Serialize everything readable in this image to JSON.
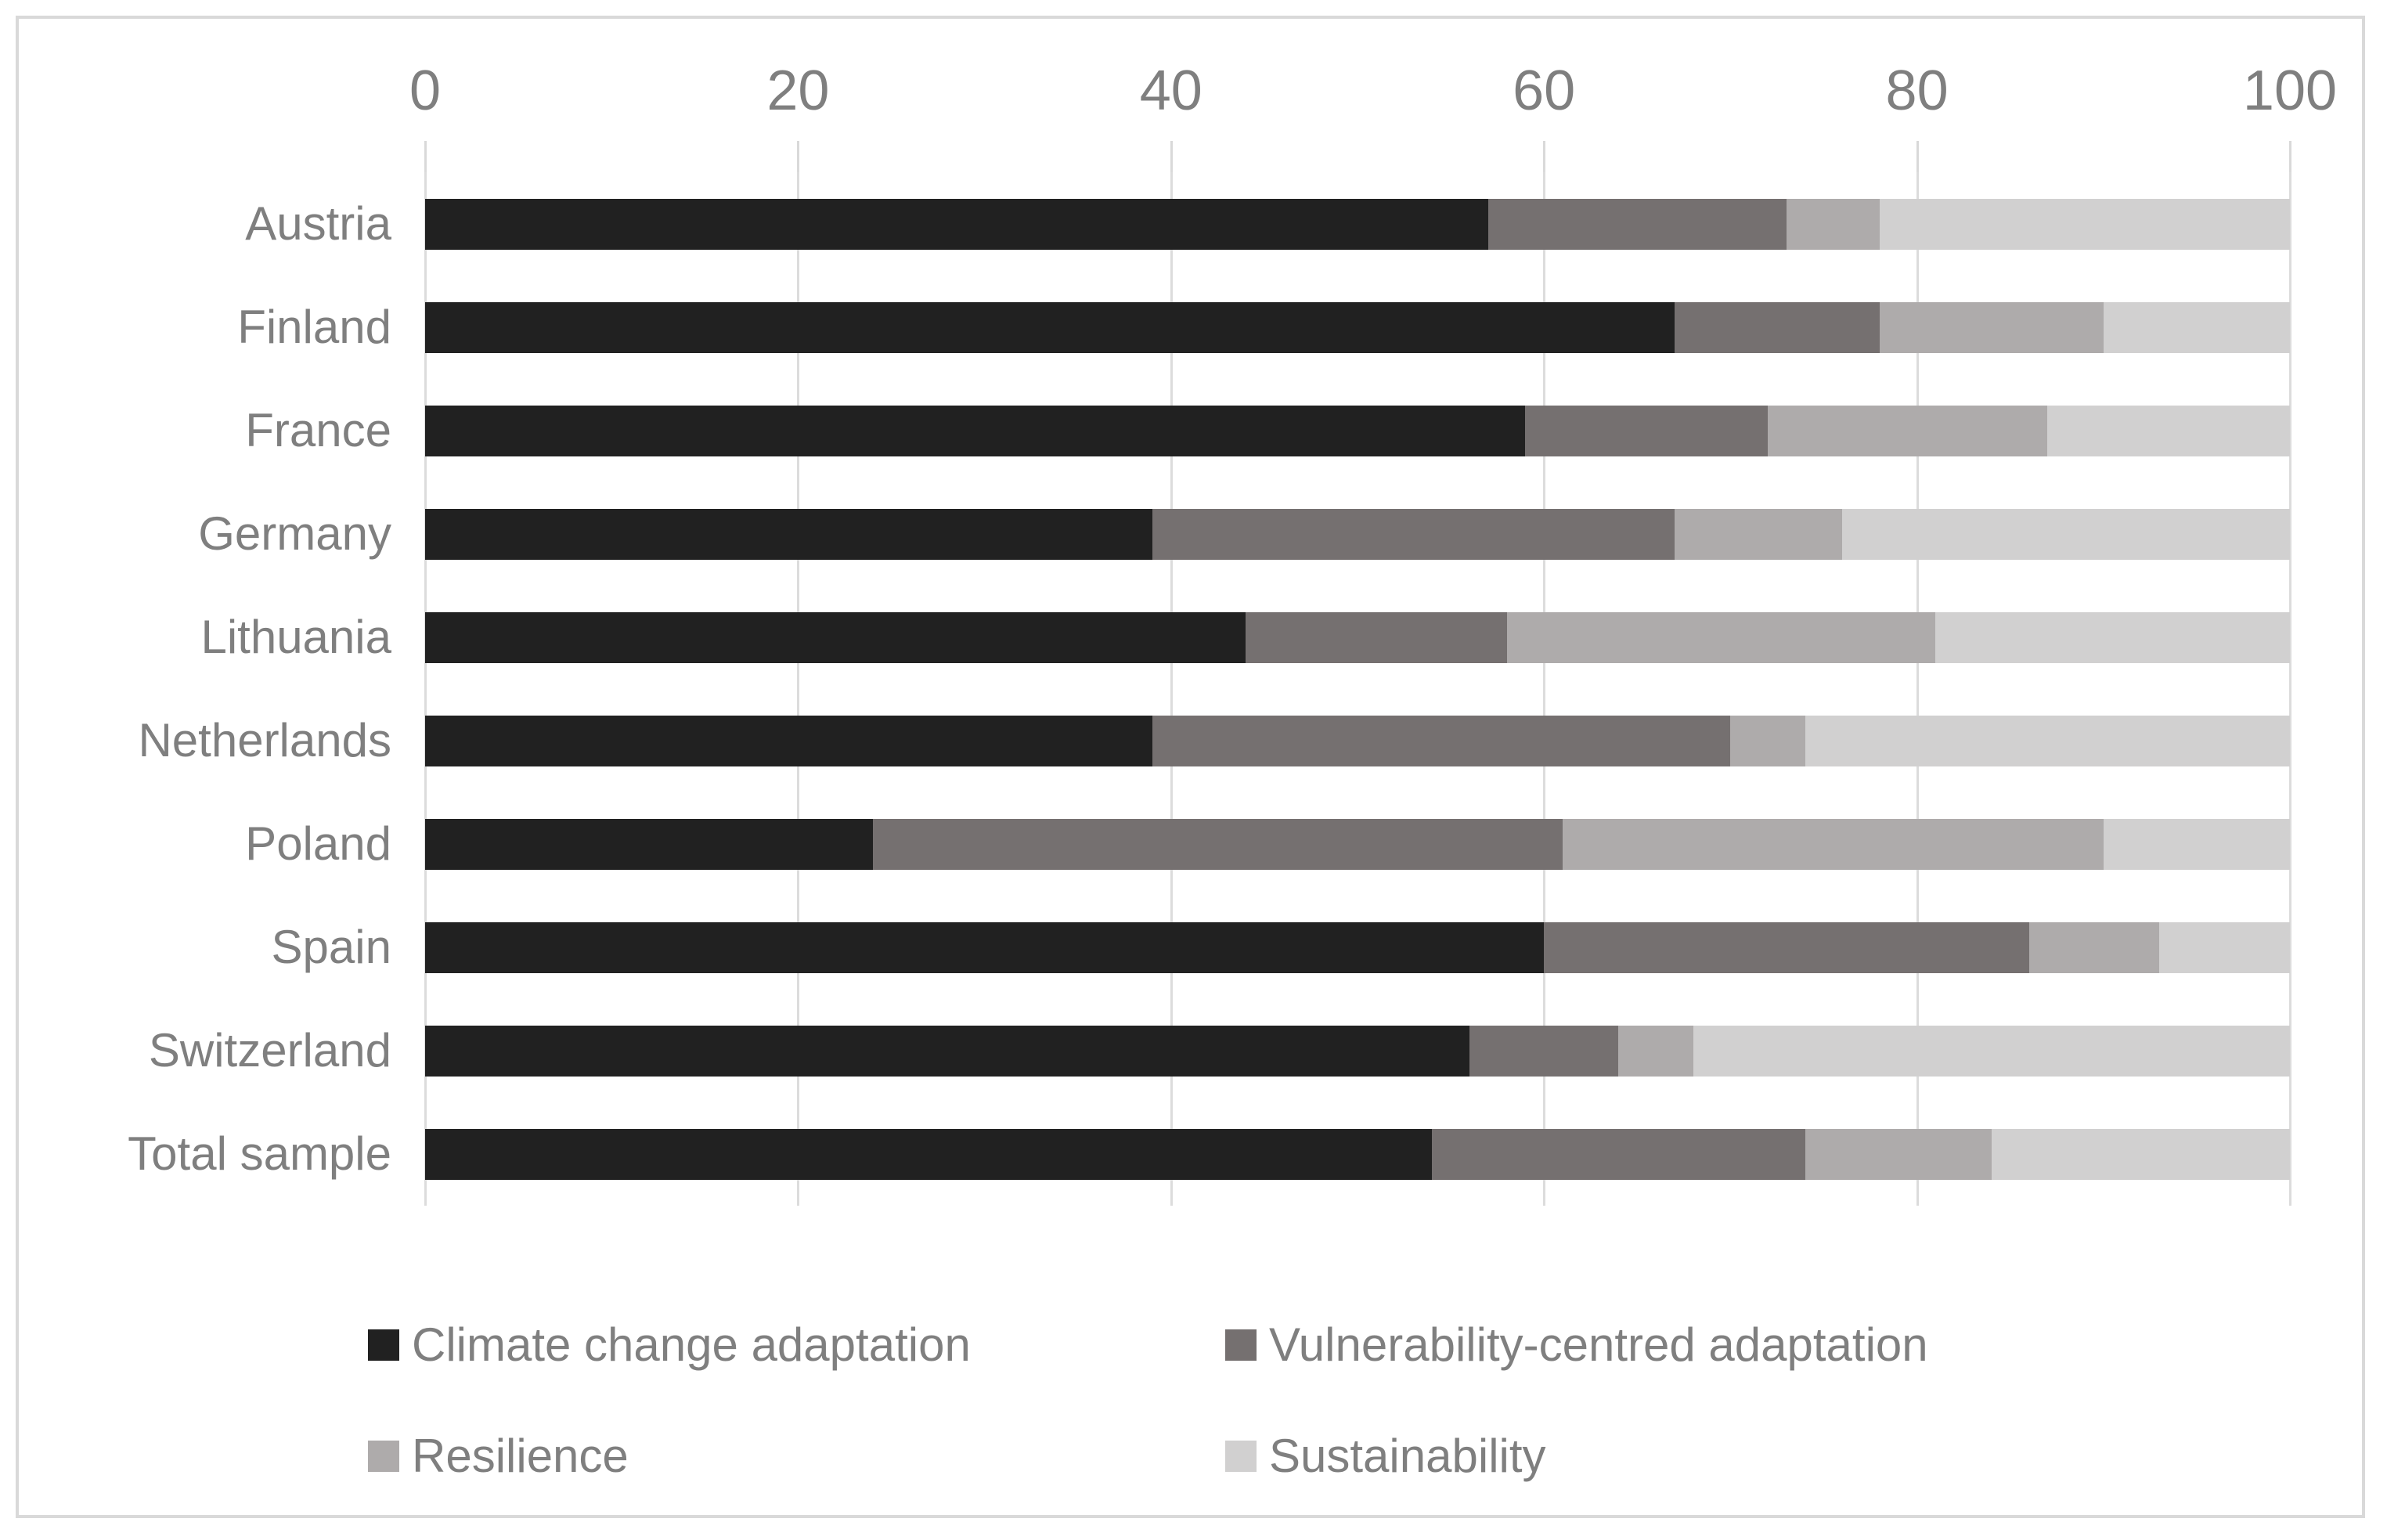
{
  "figure": {
    "background": "#ffffff",
    "border_color": "#d9d9d9",
    "text_color": "#7f7f7f",
    "gridline_color": "#dcdcdc"
  },
  "chart_data": {
    "type": "bar",
    "orientation": "horizontal",
    "stacked": true,
    "title": "",
    "xlabel": "",
    "ylabel": "",
    "x_axis": {
      "position": "top",
      "min": 0,
      "max": 100,
      "ticks": [
        0,
        20,
        40,
        60,
        80,
        100
      ]
    },
    "grid": true,
    "legend_position": "bottom",
    "categories": [
      "Austria",
      "Finland",
      "France",
      "Germany",
      "Lithuania",
      "Netherlands",
      "Poland",
      "Spain",
      "Switzerland",
      "Total sample"
    ],
    "series": [
      {
        "name": "Climate change adaptation",
        "color": "#212121",
        "values": [
          57,
          67,
          59,
          39,
          44,
          39,
          24,
          60,
          56,
          54
        ]
      },
      {
        "name": "Vulnerability-centred adaptation",
        "color": "#757070",
        "values": [
          16,
          11,
          13,
          28,
          14,
          31,
          37,
          26,
          8,
          20
        ]
      },
      {
        "name": "Resilience",
        "color": "#aeabab",
        "values": [
          5,
          12,
          15,
          9,
          23,
          4,
          29,
          7,
          4,
          10
        ]
      },
      {
        "name": "Sustainability",
        "color": "#d1d0d0",
        "values": [
          22,
          10,
          13,
          24,
          19,
          26,
          10,
          7,
          32,
          16
        ]
      }
    ]
  },
  "legend": {
    "items": [
      {
        "label": "Climate change adaptation",
        "color": "#212121"
      },
      {
        "label": "Vulnerability-centred adaptation",
        "color": "#757070"
      },
      {
        "label": "Resilience",
        "color": "#aeabab"
      },
      {
        "label": "Sustainability",
        "color": "#d1d0d0"
      }
    ]
  }
}
